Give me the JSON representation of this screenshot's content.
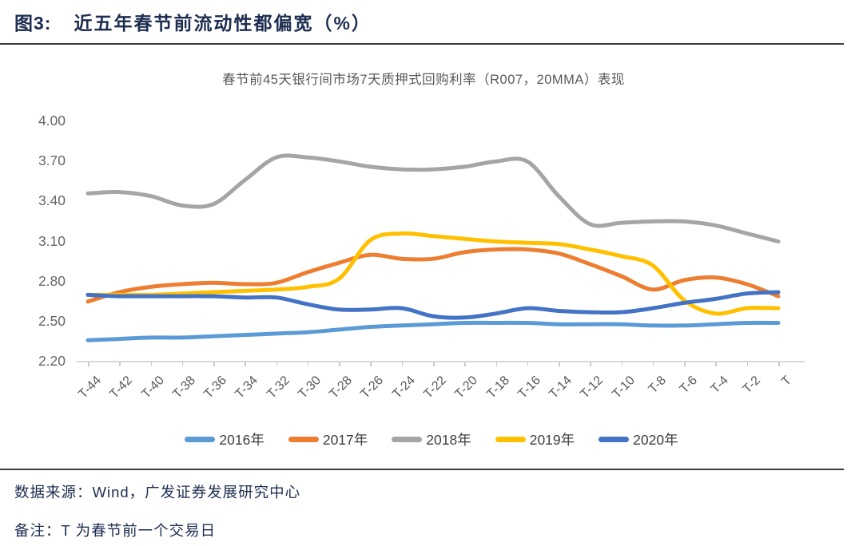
{
  "header": {
    "figure_label": "图3:",
    "title": "近五年春节前流动性都偏宽（%）"
  },
  "chart_data": {
    "type": "line",
    "title": "春节前45天银行间市场7天质押式回购利率（R007，20MMA）表现",
    "xlabel": "",
    "ylabel": "",
    "ylim": [
      2.2,
      4.0
    ],
    "yticks": [
      2.2,
      2.5,
      2.8,
      3.1,
      3.4,
      3.7,
      4.0
    ],
    "grid": false,
    "legend_position": "bottom",
    "categories": [
      "T-44",
      "T-42",
      "T-40",
      "T-38",
      "T-36",
      "T-34",
      "T-32",
      "T-30",
      "T-28",
      "T-26",
      "T-24",
      "T-22",
      "T-20",
      "T-18",
      "T-16",
      "T-14",
      "T-12",
      "T-10",
      "T-8",
      "T-6",
      "T-4",
      "T-2",
      "T"
    ],
    "series": [
      {
        "name": "2016年",
        "color": "#5B9BD5",
        "values": [
          2.36,
          2.37,
          2.38,
          2.38,
          2.39,
          2.4,
          2.41,
          2.42,
          2.44,
          2.46,
          2.47,
          2.48,
          2.49,
          2.49,
          2.49,
          2.48,
          2.48,
          2.48,
          2.47,
          2.47,
          2.48,
          2.49,
          2.49
        ]
      },
      {
        "name": "2017年",
        "color": "#ED7D31",
        "values": [
          2.65,
          2.72,
          2.76,
          2.78,
          2.79,
          2.78,
          2.79,
          2.87,
          2.94,
          3.0,
          2.97,
          2.97,
          3.02,
          3.04,
          3.04,
          3.01,
          2.93,
          2.84,
          2.74,
          2.81,
          2.83,
          2.78,
          2.69
        ]
      },
      {
        "name": "2018年",
        "color": "#A5A5A5",
        "values": [
          3.46,
          3.47,
          3.44,
          3.37,
          3.38,
          3.56,
          3.73,
          3.73,
          3.7,
          3.66,
          3.64,
          3.64,
          3.66,
          3.7,
          3.7,
          3.44,
          3.23,
          3.24,
          3.25,
          3.25,
          3.22,
          3.16,
          3.1
        ]
      },
      {
        "name": "2019年",
        "color": "#FFC000",
        "values": [
          2.7,
          2.7,
          2.7,
          2.71,
          2.72,
          2.73,
          2.74,
          2.76,
          2.82,
          3.11,
          3.16,
          3.14,
          3.12,
          3.1,
          3.09,
          3.08,
          3.04,
          2.99,
          2.92,
          2.66,
          2.56,
          2.6,
          2.6
        ]
      },
      {
        "name": "2020年",
        "color": "#4472C4",
        "values": [
          2.7,
          2.69,
          2.69,
          2.69,
          2.69,
          2.68,
          2.68,
          2.63,
          2.59,
          2.59,
          2.6,
          2.54,
          2.53,
          2.56,
          2.6,
          2.58,
          2.57,
          2.57,
          2.6,
          2.64,
          2.67,
          2.71,
          2.72
        ]
      }
    ]
  },
  "footer": {
    "source": "数据来源：Wind，广发证券发展研究中心",
    "note": "备注：T 为春节前一个交易日"
  }
}
